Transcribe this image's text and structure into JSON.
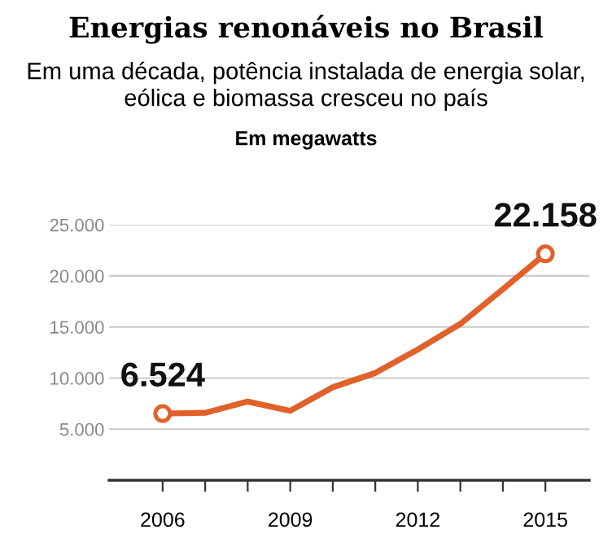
{
  "chart_data": {
    "type": "line",
    "title": "Energias renonáveis no Brasil",
    "subtitle": "Em uma década, potência instalada de energia solar,\neólica e biomassa cresceu no país",
    "annotations": [
      "Em megawatts"
    ],
    "x": [
      2006,
      2007,
      2008,
      2009,
      2010,
      2011,
      2012,
      2013,
      2014,
      2015
    ],
    "series": [
      {
        "color": "#e0622a",
        "values": [
          6524,
          6600,
          7700,
          6800,
          9100,
          10500,
          12800,
          15300,
          18700,
          22158
        ],
        "value_labels": [
          "6.524",
          null,
          null,
          null,
          null,
          null,
          null,
          null,
          null,
          "22.158"
        ]
      },
      {
        "type": "scatter",
        "x": [
          2006,
          2015
        ],
        "color": "#e0622a",
        "values": [
          6524,
          22158
        ],
        "marker": "circle"
      }
    ],
    "marker": "none",
    "line_style": "solid",
    "grid": "y",
    "legend": false,
    "xlim": [
      2004.74,
      2016.03
    ],
    "ylim": [
      0,
      25000
    ],
    "xticks": [
      2006,
      {
        "value": 2007,
        "label": null
      },
      {
        "value": 2008,
        "label": null
      },
      2009,
      {
        "value": 2010,
        "label": null
      },
      {
        "value": 2011,
        "label": null
      },
      2012,
      {
        "value": 2013,
        "label": null
      },
      {
        "value": 2014,
        "label": null
      },
      2015
    ],
    "yticks": [
      {
        "value": 5000,
        "label": "5.000"
      },
      {
        "value": 10000,
        "label": "10.000"
      },
      {
        "value": 15000,
        "label": "15.000"
      },
      {
        "value": 20000,
        "label": "20.000"
      },
      {
        "value": 25000,
        "label": "25.000"
      }
    ]
  }
}
